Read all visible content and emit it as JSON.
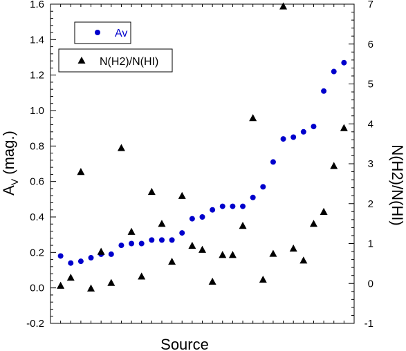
{
  "chart_data": {
    "type": "scatter",
    "xlabel": "Source",
    "ylabel_left": {
      "main": "A",
      "sub": "V",
      "rest": " (mag.)"
    },
    "ylabel_right": "N(H2)/N(HI)",
    "ylim_left": [
      -0.2,
      1.6
    ],
    "yticks_left": [
      -0.2,
      0.0,
      0.2,
      0.4,
      0.6,
      0.8,
      1.0,
      1.2,
      1.4,
      1.6
    ],
    "ytick_labels_left": [
      "-0.2",
      "0.0",
      "0.2",
      "0.4",
      "0.6",
      "0.8",
      "1.0",
      "1.2",
      "1.4",
      "1.6"
    ],
    "ylim_right": [
      -1,
      7
    ],
    "yticks_right": [
      -1,
      0,
      1,
      2,
      3,
      4,
      5,
      6,
      7
    ],
    "ytick_labels_right": [
      "-1",
      "0",
      "1",
      "2",
      "3",
      "4",
      "5",
      "6",
      "7"
    ],
    "xlim": [
      0,
      30
    ],
    "grid": false,
    "legend_position": "top-left",
    "series": [
      {
        "name": "Av",
        "axis": "left",
        "marker": "circle",
        "color": "#0000cc",
        "x": [
          1,
          2,
          3,
          4,
          5,
          6,
          7,
          8,
          9,
          10,
          11,
          12,
          13,
          14,
          15,
          16,
          17,
          18,
          19,
          20,
          21,
          22,
          23,
          24,
          25,
          26,
          27,
          28,
          29
        ],
        "values": [
          0.18,
          0.14,
          0.15,
          0.17,
          0.19,
          0.19,
          0.24,
          0.25,
          0.25,
          0.27,
          0.27,
          0.27,
          0.31,
          0.39,
          0.4,
          0.44,
          0.46,
          0.46,
          0.46,
          0.51,
          0.57,
          0.71,
          0.84,
          0.85,
          0.88,
          0.91,
          1.11,
          1.22,
          1.27
        ]
      },
      {
        "name": "N(H2)/N(HI)",
        "axis": "right",
        "marker": "triangle",
        "color": "#000000",
        "x": [
          1,
          2,
          3,
          4,
          5,
          6,
          7,
          8,
          9,
          10,
          11,
          12,
          13,
          14,
          15,
          16,
          17,
          18,
          19,
          20,
          21,
          22,
          23,
          24,
          25,
          26,
          27,
          28,
          29
        ],
        "values": [
          -0.05,
          0.15,
          2.8,
          -0.12,
          0.8,
          0.02,
          3.4,
          1.3,
          0.18,
          2.3,
          1.5,
          0.55,
          2.2,
          0.95,
          0.85,
          0.05,
          0.72,
          0.72,
          1.45,
          4.15,
          0.1,
          0.75,
          6.95,
          0.88,
          0.58,
          1.5,
          1.8,
          2.95,
          3.9
        ]
      }
    ]
  }
}
